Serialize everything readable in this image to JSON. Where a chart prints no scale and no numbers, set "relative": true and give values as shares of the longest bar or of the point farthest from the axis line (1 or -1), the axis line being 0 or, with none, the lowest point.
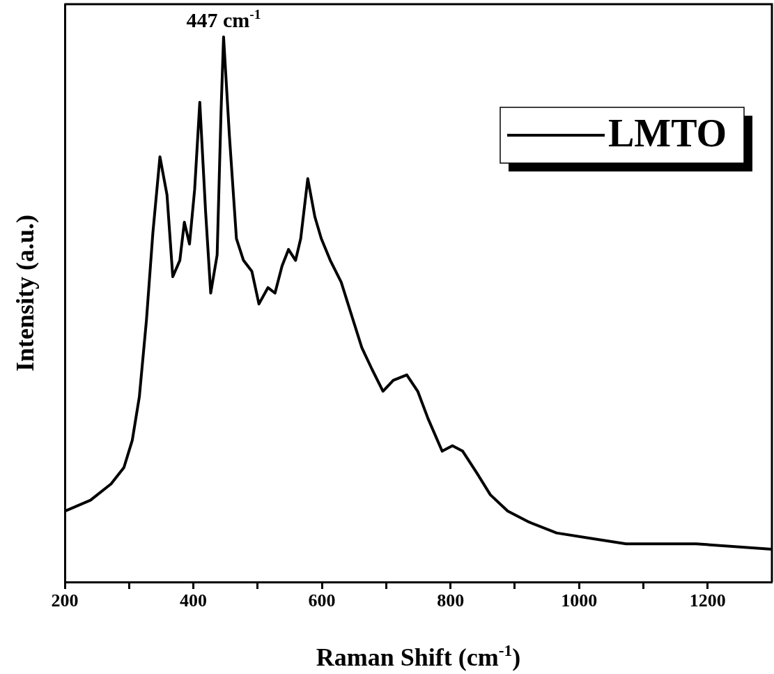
{
  "chart_data": {
    "type": "line",
    "relative": true,
    "xlabel": "Raman Shift (cm$^{-1}$)",
    "ylabel": "Intensity (a.u.)",
    "annotations": [
      {
        "text": "447 cm$^{-1}$",
        "x": 447,
        "y": 1
      }
    ],
    "xlim": [
      200,
      1300
    ],
    "xticks": [
      200,
      {
        "value": 300,
        "label": null
      },
      400,
      {
        "value": 500,
        "label": null
      },
      600,
      {
        "value": 700,
        "label": null
      },
      800,
      {
        "value": 900,
        "label": null
      },
      1000,
      {
        "value": 1100,
        "label": null
      },
      1200
    ],
    "legend": "top right",
    "grid": false,
    "marker": "none",
    "line_style": "solid",
    "x": [
      200,
      240,
      272,
      292,
      305,
      316,
      327,
      337,
      348,
      359,
      368,
      379,
      386,
      394,
      402,
      410,
      419,
      427,
      437,
      443,
      447,
      456,
      467,
      478,
      491,
      502,
      516,
      527,
      538,
      548,
      559,
      567,
      578,
      589,
      599,
      613,
      630,
      646,
      662,
      678,
      695,
      711,
      732,
      749,
      765,
      787,
      803,
      819,
      841,
      862,
      889,
      922,
      965,
      1019,
      1073,
      1182,
      1300
    ],
    "series": [
      {
        "name": "LMTO",
        "color": "#000000",
        "values": [
          0.13,
          0.15,
          0.18,
          0.21,
          0.26,
          0.34,
          0.48,
          0.64,
          0.78,
          0.71,
          0.56,
          0.59,
          0.66,
          0.62,
          0.72,
          0.88,
          0.68,
          0.53,
          0.6,
          0.86,
          1,
          0.82,
          0.63,
          0.59,
          0.57,
          0.51,
          0.54,
          0.53,
          0.58,
          0.61,
          0.59,
          0.63,
          0.74,
          0.67,
          0.63,
          0.59,
          0.55,
          0.49,
          0.43,
          0.39,
          0.35,
          0.37,
          0.38,
          0.35,
          0.3,
          0.24,
          0.25,
          0.24,
          0.2,
          0.16,
          0.13,
          0.11,
          0.09,
          0.08,
          0.07,
          0.07,
          0.06
        ]
      }
    ]
  }
}
